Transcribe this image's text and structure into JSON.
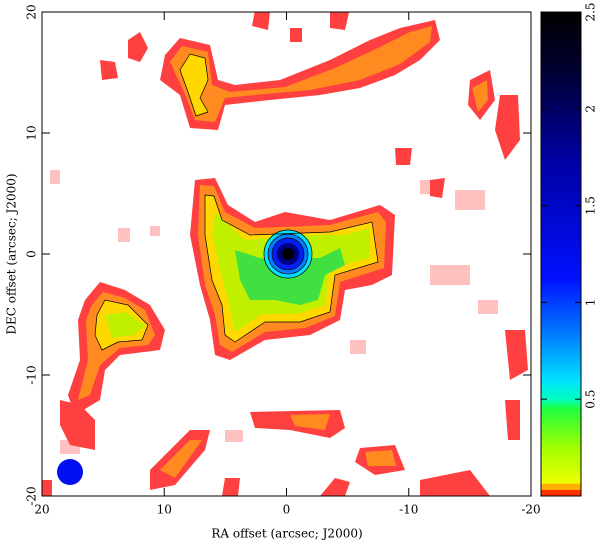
{
  "chart_data": {
    "type": "image",
    "xlabel": "RA offset (arcsec; J2000)",
    "ylabel": "DEC offset (arcsec; J2000)",
    "xlim": [
      20,
      -20
    ],
    "xticks": [
      20,
      10,
      0,
      -10,
      -20
    ],
    "ylim": [
      -20,
      20
    ],
    "yticks": [
      -20,
      -10,
      0,
      10,
      20
    ],
    "colorbar": {
      "lim": [
        0,
        2.5
      ],
      "ticks": [
        0.5,
        1,
        1.5,
        2,
        2.5
      ]
    }
  }
}
